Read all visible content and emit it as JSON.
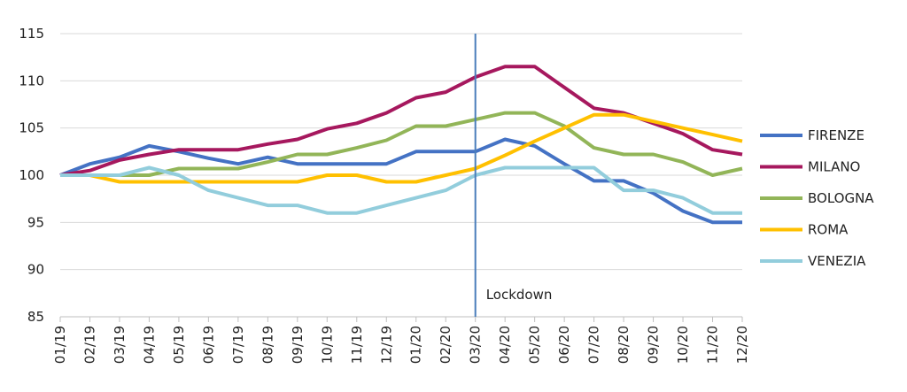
{
  "chart_data": {
    "type": "line",
    "title": "",
    "xlabel": "",
    "ylabel": "",
    "ylim": [
      85,
      115
    ],
    "yticks": [
      85,
      90,
      95,
      100,
      105,
      110,
      115
    ],
    "grid": "horizontal",
    "legend_position": "right",
    "categories": [
      "01/19",
      "02/19",
      "03/19",
      "04/19",
      "05/19",
      "06/19",
      "07/19",
      "08/19",
      "09/19",
      "10/19",
      "11/19",
      "12/19",
      "01/20",
      "02/20",
      "03/20",
      "04/20",
      "05/20",
      "06/20",
      "07/20",
      "08/20",
      "09/20",
      "10/20",
      "11/20",
      "12/20"
    ],
    "annotation": {
      "label": "Lockdown",
      "at_category": "03/20"
    },
    "series": [
      {
        "name": "FIRENZE",
        "color": "#4472c4",
        "values": [
          100,
          101.2,
          101.9,
          103.1,
          102.5,
          101.8,
          101.2,
          101.9,
          101.2,
          101.2,
          101.2,
          101.2,
          102.5,
          102.5,
          102.5,
          103.8,
          103.1,
          101.2,
          99.4,
          99.4,
          98.1,
          96.2,
          95.0,
          95.0
        ]
      },
      {
        "name": "MILANO",
        "color": "#a6185e",
        "values": [
          100,
          100.5,
          101.6,
          102.2,
          102.7,
          102.7,
          102.7,
          103.3,
          103.8,
          104.9,
          105.5,
          106.6,
          108.2,
          108.8,
          110.4,
          111.5,
          111.5,
          109.3,
          107.1,
          106.6,
          105.5,
          104.4,
          102.7,
          102.2
        ]
      },
      {
        "name": "BOLOGNA",
        "color": "#92b558",
        "values": [
          100,
          100,
          100,
          100,
          100.7,
          100.7,
          100.7,
          101.4,
          102.2,
          102.2,
          102.9,
          103.7,
          105.2,
          105.2,
          105.9,
          106.6,
          106.6,
          105.2,
          102.9,
          102.2,
          102.2,
          101.4,
          100,
          100.7
        ]
      },
      {
        "name": "ROMA",
        "color": "#ffc000",
        "values": [
          100,
          100,
          99.3,
          99.3,
          99.3,
          99.3,
          99.3,
          99.3,
          99.3,
          100,
          100,
          99.3,
          99.3,
          100,
          100.7,
          102.1,
          103.6,
          105,
          106.4,
          106.4,
          105.7,
          105,
          104.3,
          103.6
        ]
      },
      {
        "name": "VENEZIA",
        "color": "#92cddc",
        "values": [
          100,
          100,
          100,
          100.8,
          100,
          98.4,
          97.6,
          96.8,
          96.8,
          96,
          96,
          96.8,
          97.6,
          98.4,
          100,
          100.8,
          100.8,
          100.8,
          100.8,
          98.4,
          98.4,
          97.6,
          96,
          96
        ]
      }
    ]
  }
}
